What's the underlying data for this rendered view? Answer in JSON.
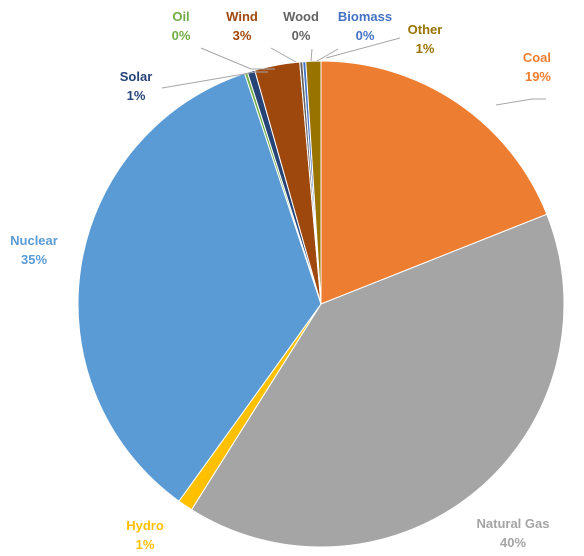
{
  "chart_data": {
    "type": "pie",
    "title": "",
    "slices": [
      {
        "name": "Coal",
        "value": 19,
        "label": "19%",
        "color": "#ED7D31",
        "label_color": "#ED7D31"
      },
      {
        "name": "Natural Gas",
        "value": 40,
        "label": "40%",
        "color": "#A5A5A5",
        "label_color": "#A5A5A5"
      },
      {
        "name": "Hydro",
        "value": 1,
        "label": "1%",
        "color": "#FFC000",
        "label_color": "#FFC000"
      },
      {
        "name": "Nuclear",
        "value": 35,
        "label": "35%",
        "color": "#5B9BD5",
        "label_color": "#5B9BD5"
      },
      {
        "name": "Oil",
        "value": 0.2,
        "label": "0%",
        "color": "#70AD47",
        "label_color": "#70AD47"
      },
      {
        "name": "Solar",
        "value": 0.5,
        "label": "1%",
        "color": "#264478",
        "label_color": "#264478"
      },
      {
        "name": "Wind",
        "value": 3,
        "label": "3%",
        "color": "#9E480E",
        "label_color": "#9E480E"
      },
      {
        "name": "Wood",
        "value": 0.2,
        "label": "0%",
        "color": "#636363",
        "label_color": "#636363"
      },
      {
        "name": "Biomass",
        "value": 0.2,
        "label": "0%",
        "color": "#4472C4",
        "label_color": "#4472C4"
      },
      {
        "name": "Other",
        "value": 1,
        "label": "1%",
        "color": "#997300",
        "label_color": "#997300"
      }
    ],
    "legend": "none",
    "data_labels": "category-and-percentage"
  }
}
